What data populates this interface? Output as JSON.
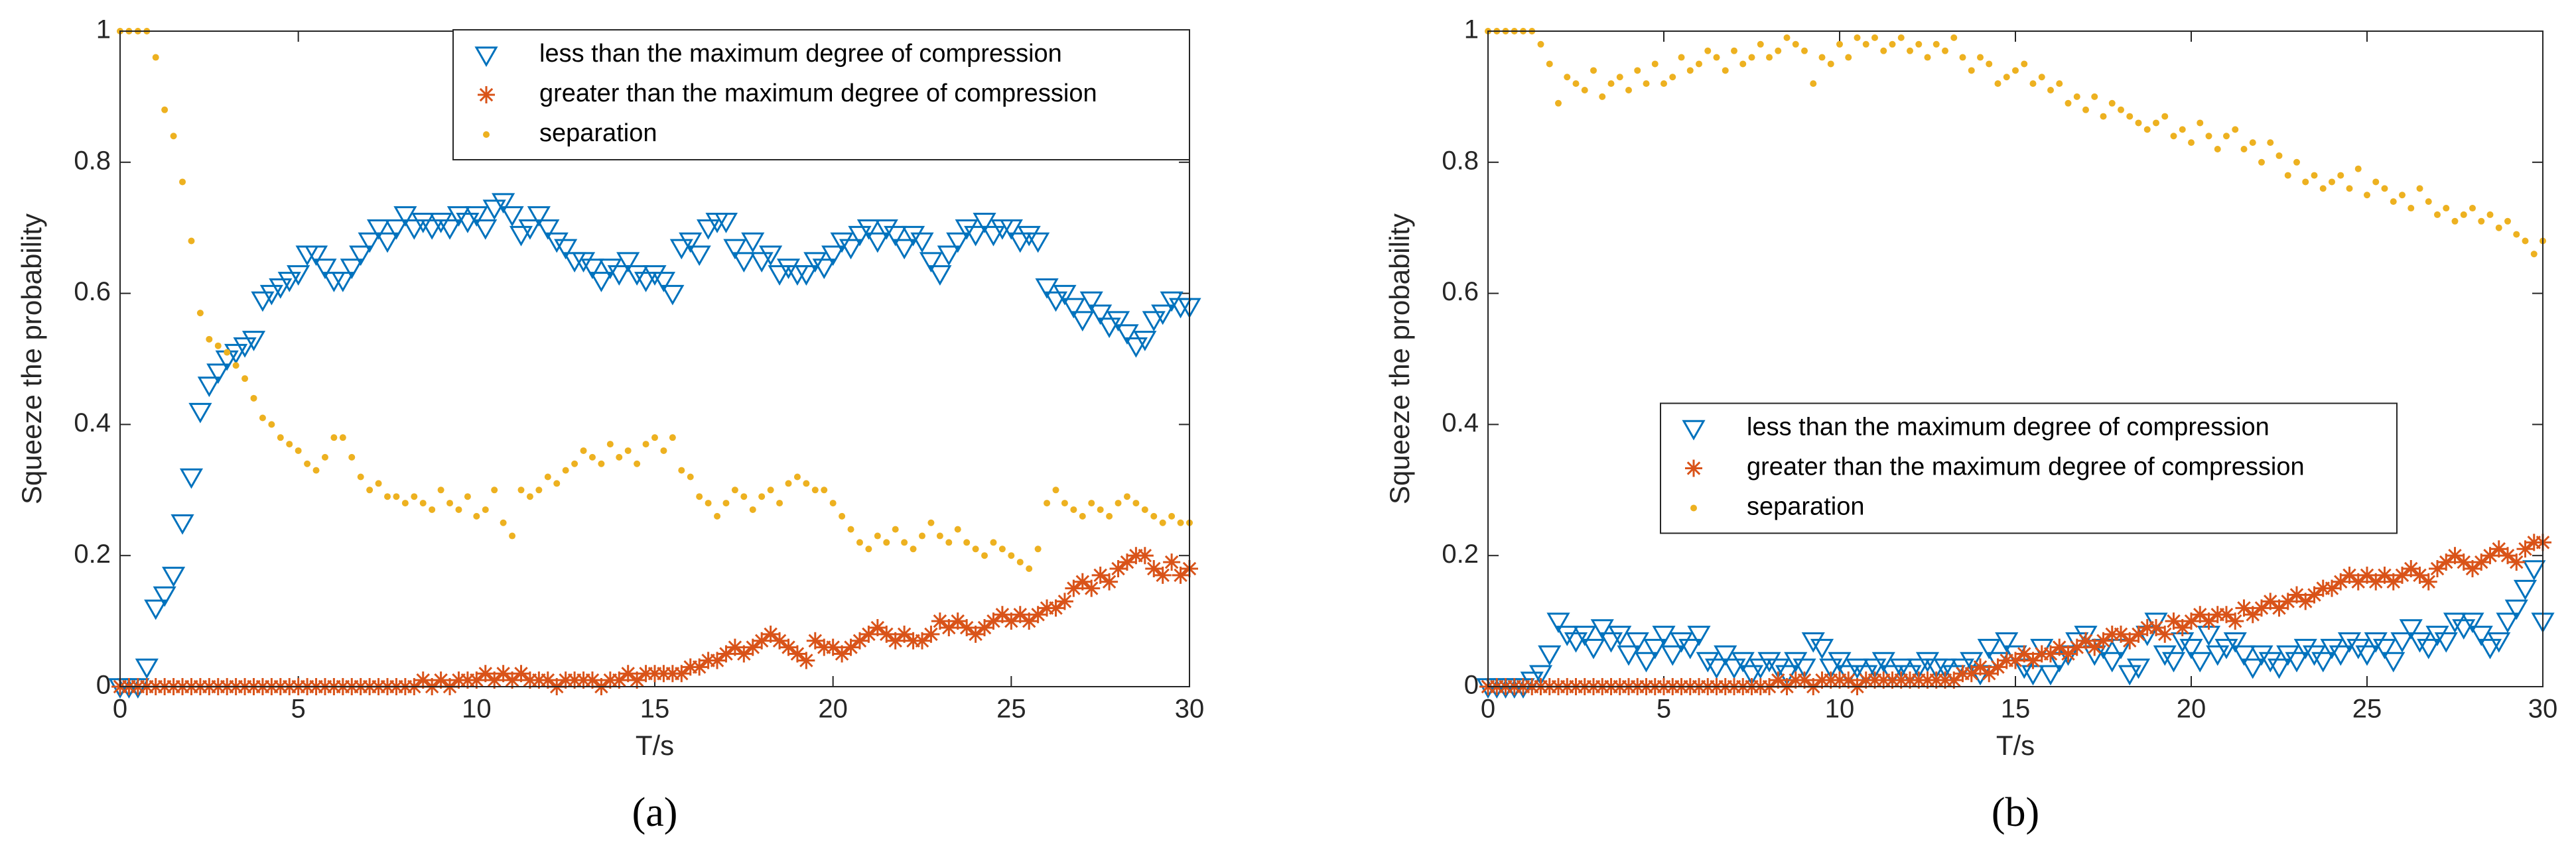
{
  "chart_data": [
    {
      "type": "scatter",
      "caption": "(a)",
      "xlabel": "T/s",
      "ylabel": "Squeeze the probability",
      "xlim": [
        0,
        30
      ],
      "ylim": [
        0,
        1
      ],
      "xticks": [
        0,
        5,
        10,
        15,
        20,
        25,
        30
      ],
      "yticks": [
        0,
        0.2,
        0.4,
        0.6,
        0.8,
        1
      ],
      "legend": "upper right",
      "x": [
        0,
        0.25,
        0.5,
        0.75,
        1,
        1.25,
        1.5,
        1.75,
        2,
        2.25,
        2.5,
        2.75,
        3,
        3.25,
        3.5,
        3.75,
        4,
        4.25,
        4.5,
        4.75,
        5,
        5.25,
        5.5,
        5.75,
        6,
        6.25,
        6.5,
        6.75,
        7,
        7.25,
        7.5,
        7.75,
        8,
        8.25,
        8.5,
        8.75,
        9,
        9.25,
        9.5,
        9.75,
        10,
        10.25,
        10.5,
        10.75,
        11,
        11.25,
        11.5,
        11.75,
        12,
        12.25,
        12.5,
        12.75,
        13,
        13.25,
        13.5,
        13.75,
        14,
        14.25,
        14.5,
        14.75,
        15,
        15.25,
        15.5,
        15.75,
        16,
        16.25,
        16.5,
        16.75,
        17,
        17.25,
        17.5,
        17.75,
        18,
        18.25,
        18.5,
        18.75,
        19,
        19.25,
        19.5,
        19.75,
        20,
        20.25,
        20.5,
        20.75,
        21,
        21.25,
        21.5,
        21.75,
        22,
        22.25,
        22.5,
        22.75,
        23,
        23.25,
        23.5,
        23.75,
        24,
        24.25,
        24.5,
        24.75,
        25,
        25.25,
        25.5,
        25.75,
        26,
        26.25,
        26.5,
        26.75,
        27,
        27.25,
        27.5,
        27.75,
        28,
        28.25,
        28.5,
        28.75,
        29,
        29.25,
        29.5,
        29.75,
        30
      ],
      "series": [
        {
          "name": "less than the maximum degree of compression",
          "color": "#0072bd",
          "marker": "triangle-down",
          "values": [
            0,
            0,
            0,
            0.03,
            0.12,
            0.14,
            0.17,
            0.25,
            0.32,
            0.42,
            0.46,
            0.48,
            0.5,
            0.51,
            0.52,
            0.53,
            0.59,
            0.6,
            0.61,
            0.62,
            0.63,
            0.66,
            0.66,
            0.64,
            0.62,
            0.62,
            0.64,
            0.66,
            0.68,
            0.7,
            0.68,
            0.7,
            0.72,
            0.7,
            0.71,
            0.7,
            0.71,
            0.7,
            0.72,
            0.71,
            0.72,
            0.7,
            0.73,
            0.74,
            0.72,
            0.69,
            0.7,
            0.72,
            0.7,
            0.68,
            0.67,
            0.65,
            0.65,
            0.64,
            0.62,
            0.64,
            0.63,
            0.65,
            0.63,
            0.62,
            0.63,
            0.62,
            0.6,
            0.67,
            0.68,
            0.66,
            0.7,
            0.71,
            0.71,
            0.67,
            0.65,
            0.68,
            0.65,
            0.66,
            0.63,
            0.64,
            0.63,
            0.63,
            0.65,
            0.64,
            0.66,
            0.68,
            0.67,
            0.69,
            0.7,
            0.68,
            0.7,
            0.69,
            0.67,
            0.69,
            0.68,
            0.65,
            0.63,
            0.66,
            0.68,
            0.7,
            0.69,
            0.71,
            0.69,
            0.7,
            0.7,
            0.68,
            0.69,
            0.68,
            0.61,
            0.59,
            0.6,
            0.58,
            0.56,
            0.59,
            0.57,
            0.55,
            0.56,
            0.54,
            0.52,
            0.53,
            0.56,
            0.57,
            0.59,
            0.58,
            0.58
          ]
        },
        {
          "name": "greater than the maximum degree of compression",
          "color": "#d95319",
          "marker": "asterisk",
          "values": [
            0,
            0,
            0,
            0,
            0,
            0,
            0,
            0,
            0,
            0,
            0,
            0,
            0,
            0,
            0,
            0,
            0,
            0,
            0,
            0,
            0,
            0,
            0,
            0,
            0,
            0,
            0,
            0,
            0,
            0,
            0,
            0,
            0,
            0,
            0.01,
            0,
            0.01,
            0,
            0.01,
            0.01,
            0.01,
            0.02,
            0.01,
            0.02,
            0.01,
            0.02,
            0.01,
            0.01,
            0.01,
            0,
            0.01,
            0.01,
            0.01,
            0.01,
            0,
            0.01,
            0.01,
            0.02,
            0.01,
            0.02,
            0.02,
            0.02,
            0.02,
            0.02,
            0.03,
            0.03,
            0.04,
            0.04,
            0.05,
            0.06,
            0.05,
            0.06,
            0.07,
            0.08,
            0.07,
            0.06,
            0.05,
            0.04,
            0.07,
            0.06,
            0.06,
            0.05,
            0.06,
            0.07,
            0.08,
            0.09,
            0.08,
            0.07,
            0.08,
            0.07,
            0.07,
            0.08,
            0.1,
            0.09,
            0.1,
            0.09,
            0.08,
            0.09,
            0.1,
            0.11,
            0.1,
            0.11,
            0.1,
            0.11,
            0.12,
            0.12,
            0.13,
            0.15,
            0.16,
            0.15,
            0.17,
            0.16,
            0.18,
            0.19,
            0.2,
            0.2,
            0.18,
            0.17,
            0.19,
            0.17,
            0.18
          ]
        },
        {
          "name": "separation",
          "color": "#edb120",
          "marker": "dot",
          "values": [
            1,
            1,
            1,
            1,
            0.96,
            0.88,
            0.84,
            0.77,
            0.68,
            0.57,
            0.53,
            0.52,
            0.51,
            0.49,
            0.47,
            0.44,
            0.41,
            0.4,
            0.38,
            0.37,
            0.36,
            0.34,
            0.33,
            0.35,
            0.38,
            0.38,
            0.35,
            0.32,
            0.3,
            0.31,
            0.29,
            0.29,
            0.28,
            0.29,
            0.28,
            0.27,
            0.3,
            0.28,
            0.27,
            0.29,
            0.26,
            0.27,
            0.3,
            0.25,
            0.23,
            0.3,
            0.29,
            0.3,
            0.32,
            0.31,
            0.33,
            0.34,
            0.36,
            0.35,
            0.34,
            0.37,
            0.35,
            0.36,
            0.34,
            0.37,
            0.38,
            0.36,
            0.38,
            0.33,
            0.32,
            0.29,
            0.28,
            0.26,
            0.28,
            0.3,
            0.29,
            0.27,
            0.29,
            0.3,
            0.28,
            0.31,
            0.32,
            0.31,
            0.3,
            0.3,
            0.28,
            0.26,
            0.24,
            0.22,
            0.21,
            0.23,
            0.22,
            0.24,
            0.22,
            0.21,
            0.23,
            0.25,
            0.23,
            0.22,
            0.24,
            0.22,
            0.21,
            0.2,
            0.22,
            0.21,
            0.2,
            0.19,
            0.18,
            0.21,
            0.28,
            0.3,
            0.28,
            0.27,
            0.26,
            0.28,
            0.27,
            0.26,
            0.28,
            0.29,
            0.28,
            0.27,
            0.26,
            0.25,
            0.26,
            0.25,
            0.25
          ]
        }
      ]
    },
    {
      "type": "scatter",
      "caption": "(b)",
      "xlabel": "T/s",
      "ylabel": "Squeeze the probability",
      "xlim": [
        0,
        30
      ],
      "ylim": [
        0,
        1
      ],
      "xticks": [
        0,
        5,
        10,
        15,
        20,
        25,
        30
      ],
      "yticks": [
        0,
        0.2,
        0.4,
        0.6,
        0.8,
        1
      ],
      "legend": "center",
      "x": [
        0,
        0.25,
        0.5,
        0.75,
        1,
        1.25,
        1.5,
        1.75,
        2,
        2.25,
        2.5,
        2.75,
        3,
        3.25,
        3.5,
        3.75,
        4,
        4.25,
        4.5,
        4.75,
        5,
        5.25,
        5.5,
        5.75,
        6,
        6.25,
        6.5,
        6.75,
        7,
        7.25,
        7.5,
        7.75,
        8,
        8.25,
        8.5,
        8.75,
        9,
        9.25,
        9.5,
        9.75,
        10,
        10.25,
        10.5,
        10.75,
        11,
        11.25,
        11.5,
        11.75,
        12,
        12.25,
        12.5,
        12.75,
        13,
        13.25,
        13.5,
        13.75,
        14,
        14.25,
        14.5,
        14.75,
        15,
        15.25,
        15.5,
        15.75,
        16,
        16.25,
        16.5,
        16.75,
        17,
        17.25,
        17.5,
        17.75,
        18,
        18.25,
        18.5,
        18.75,
        19,
        19.25,
        19.5,
        19.75,
        20,
        20.25,
        20.5,
        20.75,
        21,
        21.25,
        21.5,
        21.75,
        22,
        22.25,
        22.5,
        22.75,
        23,
        23.25,
        23.5,
        23.75,
        24,
        24.25,
        24.5,
        24.75,
        25,
        25.25,
        25.5,
        25.75,
        26,
        26.25,
        26.5,
        26.75,
        27,
        27.25,
        27.5,
        27.75,
        28,
        28.25,
        28.5,
        28.75,
        29,
        29.25,
        29.5,
        29.75,
        30
      ],
      "series": [
        {
          "name": "less than the maximum degree of compression",
          "color": "#0072bd",
          "marker": "triangle-down",
          "values": [
            0,
            0,
            0,
            0,
            0,
            0.01,
            0.02,
            0.05,
            0.1,
            0.08,
            0.07,
            0.08,
            0.06,
            0.09,
            0.07,
            0.08,
            0.05,
            0.07,
            0.04,
            0.06,
            0.08,
            0.05,
            0.07,
            0.06,
            0.08,
            0.04,
            0.03,
            0.05,
            0.03,
            0.04,
            0.02,
            0.03,
            0.04,
            0.03,
            0.02,
            0.04,
            0.03,
            0.07,
            0.06,
            0.03,
            0.04,
            0.02,
            0.03,
            0.02,
            0.03,
            0.04,
            0.02,
            0.03,
            0.02,
            0.03,
            0.04,
            0.03,
            0.03,
            0.02,
            0.03,
            0.04,
            0.02,
            0.06,
            0.04,
            0.07,
            0.05,
            0.03,
            0.02,
            0.06,
            0.02,
            0.04,
            0.05,
            0.07,
            0.08,
            0.05,
            0.06,
            0.04,
            0.06,
            0.02,
            0.03,
            0.08,
            0.1,
            0.05,
            0.04,
            0.07,
            0.06,
            0.04,
            0.08,
            0.05,
            0.06,
            0.07,
            0.05,
            0.03,
            0.05,
            0.04,
            0.03,
            0.05,
            0.04,
            0.06,
            0.05,
            0.04,
            0.06,
            0.05,
            0.07,
            0.06,
            0.05,
            0.07,
            0.06,
            0.04,
            0.07,
            0.09,
            0.07,
            0.06,
            0.08,
            0.07,
            0.1,
            0.09,
            0.1,
            0.08,
            0.06,
            0.07,
            0.1,
            0.12,
            0.15,
            0.18,
            0.1
          ]
        },
        {
          "name": "greater than the maximum degree of compression",
          "color": "#d95319",
          "marker": "asterisk",
          "values": [
            0,
            0,
            0,
            0,
            0,
            0,
            0,
            0,
            0,
            0,
            0,
            0,
            0,
            0,
            0,
            0,
            0,
            0,
            0,
            0,
            0,
            0,
            0,
            0,
            0,
            0,
            0,
            0,
            0,
            0,
            0,
            0,
            0,
            0.01,
            0,
            0.01,
            0.01,
            0,
            0.01,
            0.01,
            0.01,
            0.01,
            0,
            0.01,
            0.01,
            0.01,
            0.01,
            0.01,
            0.01,
            0.01,
            0.01,
            0.01,
            0.01,
            0.01,
            0.02,
            0.02,
            0.03,
            0.02,
            0.03,
            0.04,
            0.04,
            0.05,
            0.04,
            0.05,
            0.05,
            0.06,
            0.05,
            0.06,
            0.07,
            0.06,
            0.07,
            0.08,
            0.08,
            0.07,
            0.08,
            0.09,
            0.09,
            0.08,
            0.1,
            0.09,
            0.1,
            0.11,
            0.1,
            0.11,
            0.11,
            0.1,
            0.12,
            0.11,
            0.12,
            0.13,
            0.12,
            0.13,
            0.14,
            0.13,
            0.14,
            0.15,
            0.15,
            0.16,
            0.17,
            0.16,
            0.17,
            0.16,
            0.17,
            0.16,
            0.17,
            0.18,
            0.17,
            0.16,
            0.18,
            0.19,
            0.2,
            0.19,
            0.18,
            0.19,
            0.2,
            0.21,
            0.2,
            0.19,
            0.21,
            0.22,
            0.22
          ]
        },
        {
          "name": "separation",
          "color": "#edb120",
          "marker": "dot",
          "values": [
            1,
            1,
            1,
            1,
            1,
            1,
            0.98,
            0.95,
            0.89,
            0.93,
            0.92,
            0.91,
            0.94,
            0.9,
            0.92,
            0.93,
            0.91,
            0.94,
            0.92,
            0.95,
            0.92,
            0.93,
            0.96,
            0.94,
            0.95,
            0.97,
            0.96,
            0.94,
            0.97,
            0.95,
            0.96,
            0.98,
            0.96,
            0.97,
            0.99,
            0.98,
            0.97,
            0.92,
            0.96,
            0.95,
            0.98,
            0.96,
            0.99,
            0.98,
            0.99,
            0.97,
            0.98,
            0.99,
            0.97,
            0.98,
            0.96,
            0.98,
            0.97,
            0.99,
            0.96,
            0.94,
            0.96,
            0.95,
            0.92,
            0.93,
            0.94,
            0.95,
            0.92,
            0.93,
            0.91,
            0.92,
            0.89,
            0.9,
            0.88,
            0.9,
            0.87,
            0.89,
            0.88,
            0.87,
            0.86,
            0.85,
            0.86,
            0.87,
            0.84,
            0.85,
            0.83,
            0.86,
            0.84,
            0.82,
            0.84,
            0.85,
            0.82,
            0.83,
            0.8,
            0.83,
            0.81,
            0.78,
            0.8,
            0.77,
            0.78,
            0.76,
            0.77,
            0.78,
            0.76,
            0.79,
            0.75,
            0.77,
            0.76,
            0.74,
            0.75,
            0.73,
            0.76,
            0.74,
            0.72,
            0.73,
            0.71,
            0.72,
            0.73,
            0.71,
            0.72,
            0.7,
            0.71,
            0.69,
            0.68,
            0.66,
            0.68
          ]
        }
      ]
    }
  ]
}
